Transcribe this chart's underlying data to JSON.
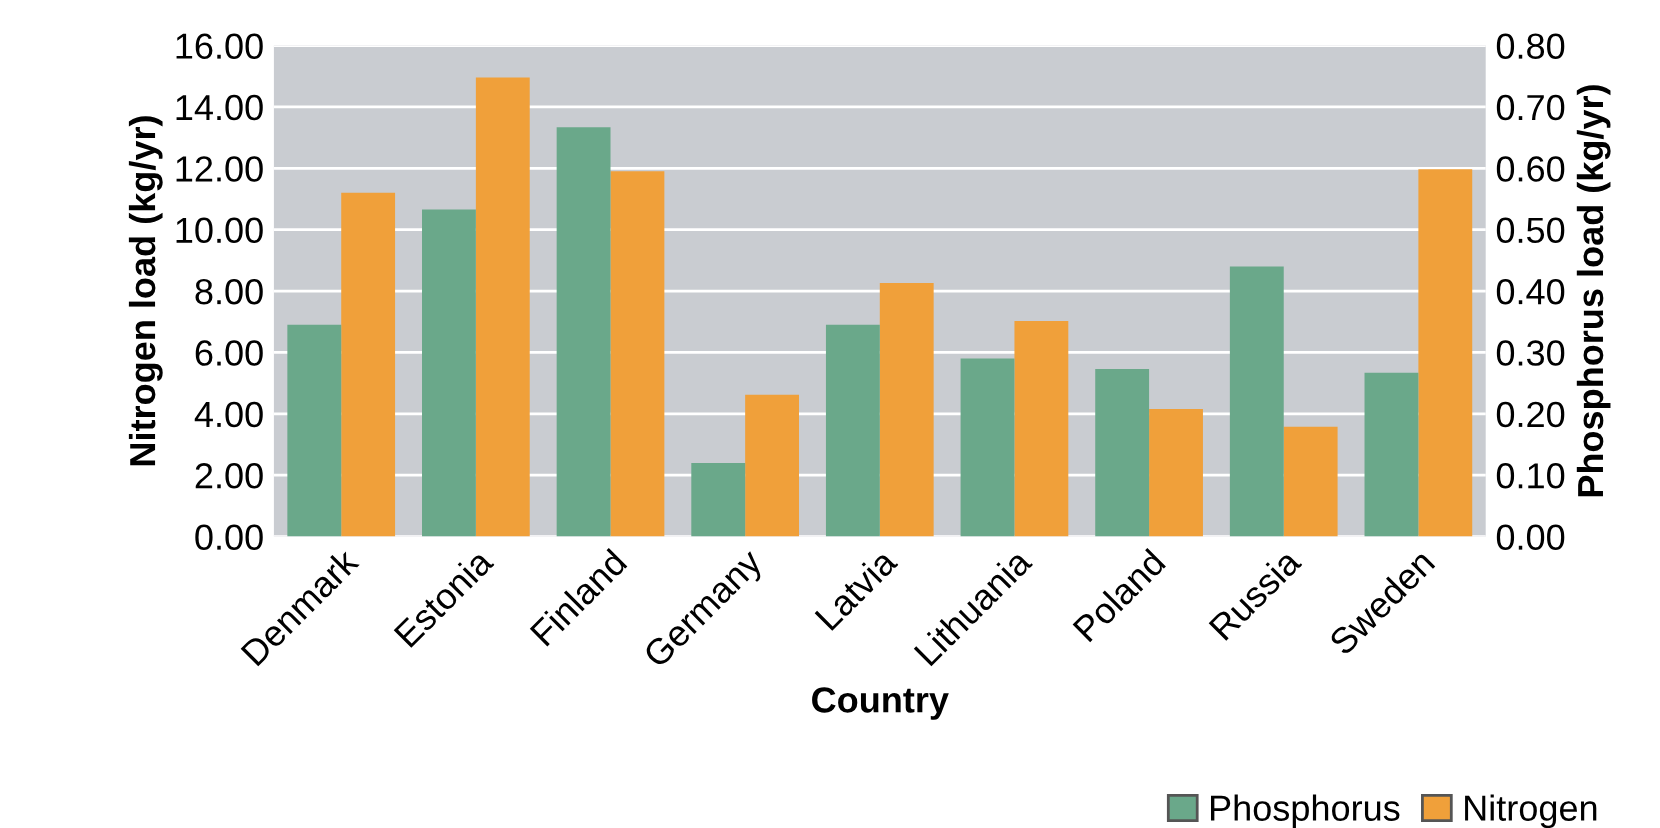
{
  "chart_data": {
    "type": "bar",
    "xlabel": "Country",
    "ylabel": "Nitrogen load (kg/yr)",
    "y2label": "Phosphorus load (kg/yr)",
    "categories": [
      "Denmark",
      "Estonia",
      "Finland",
      "Germany",
      "Latvia",
      "Lithuania",
      "Poland",
      "Russia",
      "Sweden"
    ],
    "series": [
      {
        "name": "Phosphorus",
        "color": "#6aa88a",
        "axis": "y2",
        "values": [
          0.345,
          0.533,
          0.667,
          0.12,
          0.345,
          0.29,
          0.273,
          0.44,
          0.267
        ]
      },
      {
        "name": "Nitrogen",
        "color": "#f0a03a",
        "axis": "y",
        "values": [
          11.2,
          14.96,
          11.9,
          4.62,
          8.26,
          7.02,
          4.16,
          3.58,
          11.97
        ]
      }
    ],
    "ylim": [
      0,
      16
    ],
    "yticks": [
      {
        "value": 0,
        "label": "0.00"
      },
      {
        "value": 2,
        "label": "2.00"
      },
      {
        "value": 4,
        "label": "4.00"
      },
      {
        "value": 6,
        "label": "6.00"
      },
      {
        "value": 8,
        "label": "8.00"
      },
      {
        "value": 10,
        "label": "10.00"
      },
      {
        "value": 12,
        "label": "12.00"
      },
      {
        "value": 14,
        "label": "14.00"
      },
      {
        "value": 16,
        "label": "16.00"
      }
    ],
    "y2lim": [
      0,
      0.8
    ],
    "y2ticks": [
      {
        "value": 0,
        "label": "0.00"
      },
      {
        "value": 0.1,
        "label": "0.10"
      },
      {
        "value": 0.2,
        "label": "0.20"
      },
      {
        "value": 0.3,
        "label": "0.30"
      },
      {
        "value": 0.4,
        "label": "0.40"
      },
      {
        "value": 0.5,
        "label": "0.50"
      },
      {
        "value": 0.6,
        "label": "0.60"
      },
      {
        "value": 0.7,
        "label": "0.70"
      },
      {
        "value": 0.8,
        "label": "0.80"
      }
    ],
    "grid": "y",
    "legend": "bottom right"
  }
}
